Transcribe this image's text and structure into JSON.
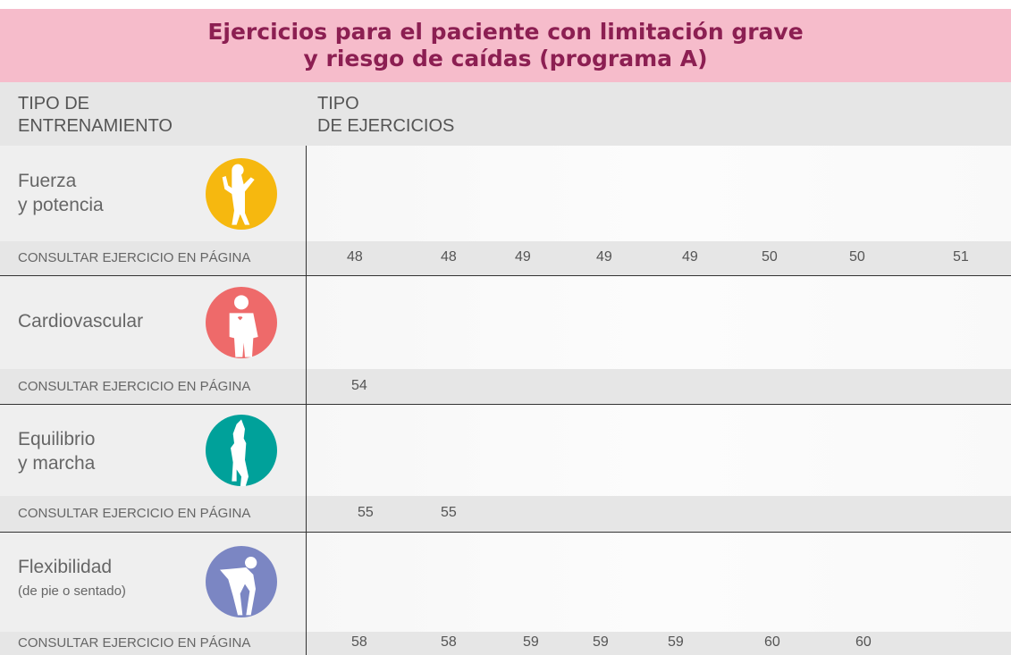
{
  "title": [
    "Ejercicios para el paciente con limitación grave",
    "y riesgo de caídas (programa A)"
  ],
  "header": {
    "training": [
      "TIPO DE",
      "ENTRENAMIENTO"
    ],
    "exercises": [
      "TIPO",
      "DE EJERCICIOS"
    ]
  },
  "sections": [
    {
      "name": [
        "Fuerza",
        "y potencia"
      ],
      "page_label": "CONSULTAR EJERCICIO EN PÁGINA",
      "pages": [
        48,
        48,
        49,
        49,
        49,
        50,
        50,
        51
      ]
    },
    {
      "name": [
        "Cardiovascular"
      ],
      "page_label": "CONSULTAR EJERCICIO EN PÁGINA",
      "pages": [
        54
      ]
    },
    {
      "name": [
        "Equilibrio",
        "y marcha"
      ],
      "page_label": "CONSULTAR EJERCICIO EN PÁGINA",
      "pages": [
        55,
        55
      ]
    },
    {
      "name": [
        "Flexibilidad"
      ],
      "note": "(de pie o sentado)",
      "page_label": "CONSULTAR EJERCICIO EN PÁGINA",
      "pages": [
        58,
        58,
        59,
        59,
        59,
        60,
        60
      ]
    }
  ]
}
